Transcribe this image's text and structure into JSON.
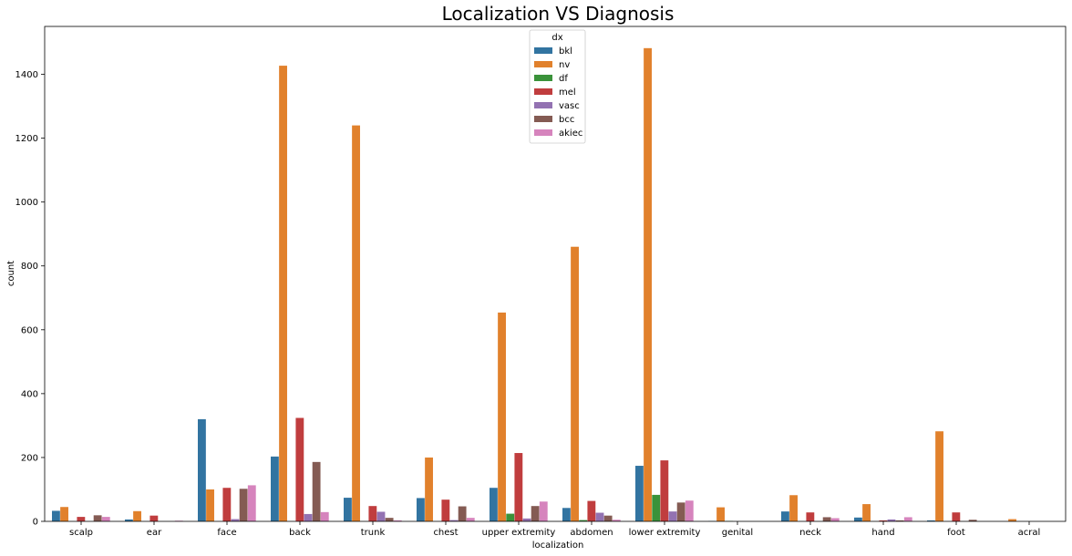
{
  "chart_data": {
    "type": "bar",
    "title": "Localization VS Diagnosis",
    "xlabel": "localization",
    "ylabel": "count",
    "ylim": [
      0,
      1550
    ],
    "yticks": [
      0,
      200,
      400,
      600,
      800,
      1000,
      1200,
      1400
    ],
    "legend": {
      "title": "dx",
      "placement": "top-center"
    },
    "categories": [
      "scalp",
      "ear",
      "face",
      "back",
      "trunk",
      "chest",
      "upper extremity",
      "abdomen",
      "lower extremity",
      "genital",
      "neck",
      "hand",
      "foot",
      "acral"
    ],
    "series": [
      {
        "name": "bkl",
        "color": "#3274a1",
        "values": [
          33,
          6,
          320,
          203,
          74,
          73,
          105,
          42,
          174,
          1,
          31,
          12,
          3,
          0
        ]
      },
      {
        "name": "nv",
        "color": "#e1812c",
        "values": [
          45,
          32,
          100,
          1427,
          1240,
          200,
          654,
          860,
          1482,
          44,
          82,
          54,
          282,
          7
        ]
      },
      {
        "name": "df",
        "color": "#3a923a",
        "values": [
          0,
          0,
          0,
          0,
          0,
          0,
          24,
          4,
          83,
          1,
          0,
          0,
          0,
          0
        ]
      },
      {
        "name": "mel",
        "color": "#c03d3e",
        "values": [
          14,
          18,
          105,
          324,
          48,
          68,
          214,
          64,
          191,
          0,
          28,
          3,
          28,
          0
        ]
      },
      {
        "name": "vasc",
        "color": "#9372b2",
        "values": [
          0,
          0,
          7,
          23,
          30,
          4,
          9,
          27,
          31,
          0,
          0,
          6,
          0,
          0
        ]
      },
      {
        "name": "bcc",
        "color": "#845b53",
        "values": [
          19,
          0,
          102,
          186,
          11,
          47,
          48,
          18,
          59,
          0,
          13,
          3,
          5,
          0
        ]
      },
      {
        "name": "akiec",
        "color": "#d684bd",
        "values": [
          14,
          2,
          113,
          29,
          3,
          11,
          62,
          5,
          65,
          0,
          10,
          13,
          0,
          0
        ]
      }
    ]
  }
}
